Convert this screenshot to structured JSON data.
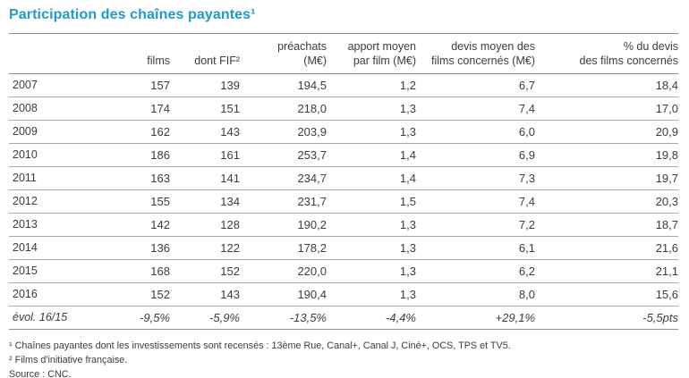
{
  "page": {
    "title": "Participation des chaînes payantes¹"
  },
  "colors": {
    "title_accent": "#2199c9",
    "text": "#3c3c3b",
    "border_strong": "#8f8f8f",
    "border_light": "#a8a8a8",
    "background": "#ffffff"
  },
  "chart_data": {
    "type": "table",
    "title": "Participation des chaînes payantes",
    "title_footnote_marker": "1",
    "columns": [
      "",
      "films",
      "dont FIF²",
      "préachats\n(M€)",
      "apport moyen\npar film (M€)",
      "devis moyen des\nfilms concernés (M€)",
      "% du devis\ndes films concernés"
    ],
    "rows": [
      {
        "label": "2007",
        "values": [
          "157",
          "139",
          "194,5",
          "1,2",
          "6,7",
          "18,4"
        ]
      },
      {
        "label": "2008",
        "values": [
          "174",
          "151",
          "218,0",
          "1,3",
          "7,4",
          "17,0"
        ]
      },
      {
        "label": "2009",
        "values": [
          "162",
          "143",
          "203,9",
          "1,3",
          "6,0",
          "20,9"
        ]
      },
      {
        "label": "2010",
        "values": [
          "186",
          "161",
          "253,7",
          "1,4",
          "6,9",
          "19,8"
        ]
      },
      {
        "label": "2011",
        "values": [
          "163",
          "141",
          "234,7",
          "1,4",
          "7,3",
          "19,7"
        ]
      },
      {
        "label": "2012",
        "values": [
          "155",
          "134",
          "231,7",
          "1,5",
          "7,4",
          "20,3"
        ]
      },
      {
        "label": "2013",
        "values": [
          "142",
          "128",
          "190,2",
          "1,3",
          "7,2",
          "18,7"
        ]
      },
      {
        "label": "2014",
        "values": [
          "136",
          "122",
          "178,2",
          "1,3",
          "6,1",
          "21,6"
        ]
      },
      {
        "label": "2015",
        "values": [
          "168",
          "152",
          "220,0",
          "1,3",
          "6,2",
          "21,1"
        ]
      },
      {
        "label": "2016",
        "values": [
          "152",
          "143",
          "190,4",
          "1,3",
          "8,0",
          "15,6"
        ]
      },
      {
        "label": "évol. 16/15",
        "values": [
          "-9,5%",
          "-5,9%",
          "-13,5%",
          "-4,4%",
          "+29,1%",
          "-5,5pts"
        ],
        "italic": true
      }
    ]
  },
  "footnotes": [
    "¹ Chaînes payantes dont les investissements sont recensés : 13ème Rue, Canal+, Canal J, Ciné+, OCS, TPS et TV5.",
    "² Films d'initiative française."
  ],
  "source": "Source : CNC."
}
